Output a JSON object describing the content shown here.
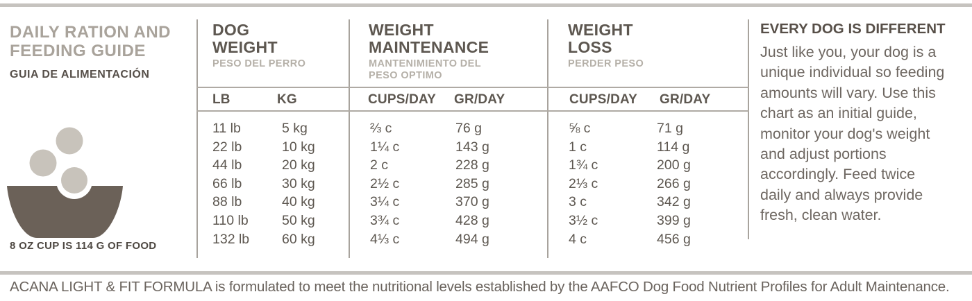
{
  "left_panel": {
    "title": "DAILY RATION AND\nFEEDING GUIDE",
    "subtitle": "GUIA DE ALIMENTACIÓN",
    "cup_note": "8 OZ CUP IS 114 G OF FOOD"
  },
  "table": {
    "sections": [
      {
        "title": "DOG\nWEIGHT",
        "subtitle": "PESO DEL PERRO",
        "columns": [
          "LB",
          "KG"
        ]
      },
      {
        "title": "WEIGHT\nMAINTENANCE",
        "subtitle": "MANTENIMIENTO DEL\nPESO OPTIMO",
        "columns": [
          "CUPS/DAY",
          "GR/DAY"
        ]
      },
      {
        "title": "WEIGHT\nLOSS",
        "subtitle": "PERDER PESO",
        "columns": [
          "CUPS/DAY",
          "GR/DAY"
        ]
      }
    ],
    "columns_data": {
      "lb": [
        "11 lb",
        "22 lb",
        "44 lb",
        "66 lb",
        "88 lb",
        "110 lb",
        "132 lb"
      ],
      "kg": [
        "5 kg",
        "10 kg",
        "20 kg",
        "30 kg",
        "40 kg",
        "50 kg",
        "60 kg"
      ],
      "maintenance_cups": [
        "⅔ c",
        "1¼ c",
        "2 c",
        "2½ c",
        "3¼ c",
        "3¾ c",
        "4⅓ c"
      ],
      "maintenance_gr": [
        "76 g",
        "143 g",
        "228 g",
        "285 g",
        "370 g",
        "428 g",
        "494 g"
      ],
      "loss_cups": [
        "⅝ c",
        "1 c",
        "1¾ c",
        "2⅓ c",
        "3 c",
        "3½ c",
        "4 c"
      ],
      "loss_gr": [
        "71 g",
        "114 g",
        "200 g",
        "266 g",
        "342 g",
        "399 g",
        "456 g"
      ]
    }
  },
  "right_panel": {
    "heading": "EVERY DOG IS DIFFERENT",
    "body": "Just like you, your dog is a\nunique individual so feeding\namounts will vary. Use this\nchart as an initial guide,\nmonitor your dog's weight\nand adjust portions\naccordingly. Feed twice\ndaily and always provide\nfresh, clean water."
  },
  "footer": {
    "text": "ACANA LIGHT & FIT FORMULA is formulated to meet the nutritional levels established by the AAFCO Dog Food Nutrient Profiles for Adult Maintenance."
  },
  "icons": {
    "bowl": "dog-food-bowl-icon",
    "kibble": "kibble-dots-icon"
  },
  "colors": {
    "title_muted": "#a9a39b",
    "text_dark": "#5d5750",
    "sublabel": "#b5b0a8",
    "body_text": "#6e6761",
    "divider_line": "#a8a39d",
    "edge_bar": "#c6c3bf",
    "bowl": "#6b6158",
    "kibble": "#c8c3bb"
  }
}
